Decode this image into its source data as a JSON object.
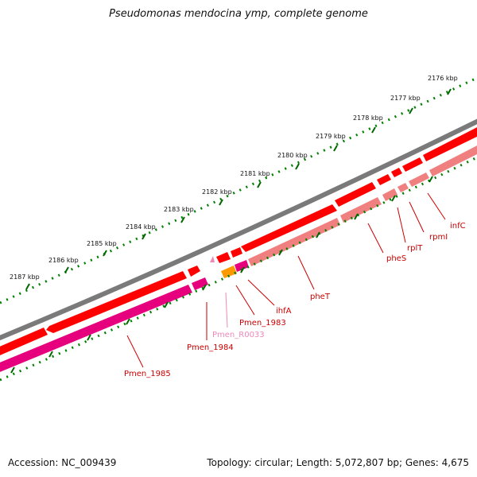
{
  "title": "Pseudomonas mendocina ymp, complete genome",
  "footer": {
    "accession": "Accession: NC_009439",
    "summary": "Topology: circular; Length: 5,072,807 bp; Genes: 4,675"
  },
  "scale_labels": [
    "2176 kbp",
    "2177 kbp",
    "2178 kbp",
    "2179 kbp",
    "2180 kbp",
    "2181 kbp",
    "2182 kbp",
    "2183 kbp",
    "2184 kbp",
    "2185 kbp",
    "2186 kbp",
    "2187 kbp"
  ],
  "genes": [
    {
      "name": "infC",
      "color": "#cc0000"
    },
    {
      "name": "rpmI",
      "color": "#cc0000"
    },
    {
      "name": "rplT",
      "color": "#cc0000"
    },
    {
      "name": "pheS",
      "color": "#cc0000"
    },
    {
      "name": "pheT",
      "color": "#cc0000"
    },
    {
      "name": "ihfA",
      "color": "#cc0000"
    },
    {
      "name": "Pmen_1983",
      "color": "#cc0000"
    },
    {
      "name": "Pmen_R0033",
      "color": "#ee88bb"
    },
    {
      "name": "Pmen_1984",
      "color": "#cc0000"
    },
    {
      "name": "Pmen_1985",
      "color": "#cc0000"
    }
  ],
  "colors": {
    "backbone": "#808080",
    "cds_forward": "#ff0000",
    "cds_light": "#f08080",
    "magenta": "#e6007e",
    "orange": "#ff9900",
    "rna": "#ee88bb",
    "tick_major": "#006600",
    "tick_minor": "#008000"
  }
}
